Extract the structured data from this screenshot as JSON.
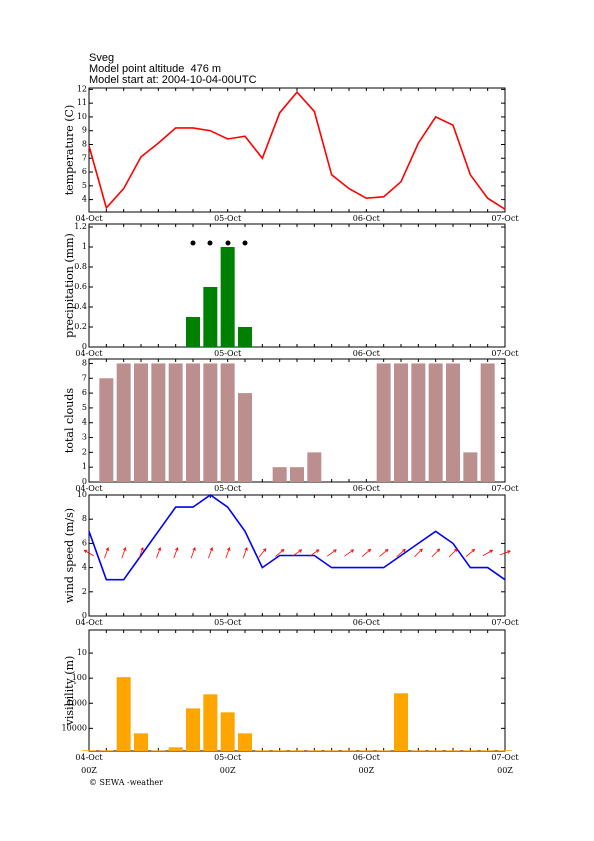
{
  "header": {
    "station": "Sveg",
    "altitude": "Model point altitude  476 m",
    "model_start": "Model start at: 2004-10-04-00UTC"
  },
  "footer": "© SEWA -weather",
  "chart_data": [
    {
      "type": "line",
      "ylabel": "temperature (C)",
      "color": "#ff0000",
      "categories": [
        "04-Oct",
        null,
        null,
        null,
        null,
        null,
        null,
        null,
        "05-Oct",
        null,
        null,
        null,
        null,
        null,
        null,
        null,
        "06-Oct",
        null,
        null,
        null,
        null,
        null,
        null,
        null,
        "07-Oct"
      ],
      "values": [
        7.9,
        3.4,
        4.8,
        7.1,
        8.1,
        9.2,
        9.2,
        9.0,
        8.4,
        8.6,
        7.0,
        10.3,
        11.8,
        10.4,
        5.8,
        4.8,
        4.1,
        4.2,
        5.3,
        8.1,
        10.0,
        9.4,
        5.8,
        4.1,
        3.3
      ],
      "ylim": [
        3.1,
        12.1
      ],
      "yticks": [
        4,
        5,
        6,
        7,
        8,
        9,
        10,
        11,
        12
      ]
    },
    {
      "type": "bar",
      "ylabel": "precipitation (mm)",
      "color": "#008000",
      "categories": [
        "04-Oct",
        null,
        null,
        null,
        null,
        null,
        null,
        null,
        "05-Oct",
        null,
        null,
        null,
        null,
        null,
        null,
        null,
        "06-Oct",
        null,
        null,
        null,
        null,
        null,
        null,
        null,
        "07-Oct"
      ],
      "values": [
        0,
        0,
        0,
        0,
        0,
        0,
        0.3,
        0.6,
        1,
        0.2,
        0,
        0,
        0,
        0,
        0,
        0,
        0,
        0,
        0,
        0,
        0,
        0,
        0,
        0,
        0
      ],
      "ylim": [
        0,
        1.23
      ],
      "yticks": [
        0,
        0.2,
        0.4,
        0.6,
        0.8,
        1,
        1.2
      ]
    },
    {
      "type": "bar",
      "ylabel": "total clouds",
      "color": "#bc8f8f",
      "categories": [
        "04-Oct",
        null,
        null,
        null,
        null,
        null,
        null,
        null,
        "05-Oct",
        null,
        null,
        null,
        null,
        null,
        null,
        null,
        "06-Oct",
        null,
        null,
        null,
        null,
        null,
        null,
        null,
        "07-Oct"
      ],
      "values": [
        0,
        7,
        8,
        8,
        8,
        8,
        8,
        8,
        8,
        6,
        0,
        1,
        1,
        2,
        0,
        0,
        0,
        8,
        8,
        8,
        8,
        8,
        2,
        8,
        0
      ],
      "ylim": [
        0,
        8.3
      ],
      "yticks": [
        0,
        1,
        2,
        3,
        4,
        5,
        6,
        7,
        8
      ]
    },
    {
      "type": "line",
      "ylabel": "wind speed (m/s)",
      "color": "#0000ff",
      "categories": [
        "04-Oct",
        null,
        null,
        null,
        null,
        null,
        null,
        null,
        "05-Oct",
        null,
        null,
        null,
        null,
        null,
        null,
        null,
        "06-Oct",
        null,
        null,
        null,
        null,
        null,
        null,
        null,
        "07-Oct"
      ],
      "values": [
        7,
        3,
        3,
        5,
        7,
        9,
        9,
        10,
        9,
        7,
        4,
        5,
        5,
        5,
        4,
        4,
        4,
        4,
        5,
        6,
        7,
        6,
        4,
        4,
        3
      ],
      "arrow_directions": [
        300,
        20,
        20,
        20,
        20,
        20,
        20,
        20,
        20,
        20,
        40,
        50,
        55,
        55,
        55,
        55,
        50,
        50,
        50,
        45,
        45,
        45,
        50,
        60,
        70
      ],
      "arrow_color": "#ff0000",
      "ylim": [
        0,
        10
      ],
      "yticks": [
        0,
        2,
        4,
        6,
        8,
        10
      ]
    },
    {
      "type": "bar",
      "ylabel": "visibility (m)",
      "color": "#ffa500",
      "log": true,
      "inverted": true,
      "categories": [
        "04-Oct",
        null,
        null,
        null,
        null,
        null,
        null,
        null,
        "05-Oct",
        null,
        null,
        null,
        null,
        null,
        null,
        null,
        "06-Oct",
        null,
        null,
        null,
        null,
        null,
        null,
        null,
        "07-Oct"
      ],
      "x_sublabels": [
        "00Z",
        "00Z",
        "00Z",
        "00Z"
      ],
      "values": [
        75000,
        75000,
        91,
        15800,
        75000,
        57000,
        1600,
        440,
        2300,
        15800,
        75000,
        75000,
        75000,
        75000,
        75000,
        75000,
        75000,
        75000,
        400,
        75000,
        75000,
        75000,
        75000,
        75000,
        75000
      ],
      "ylim": [
        1.2,
        80000
      ],
      "yticks": [
        10,
        100,
        1000,
        10000
      ]
    }
  ]
}
